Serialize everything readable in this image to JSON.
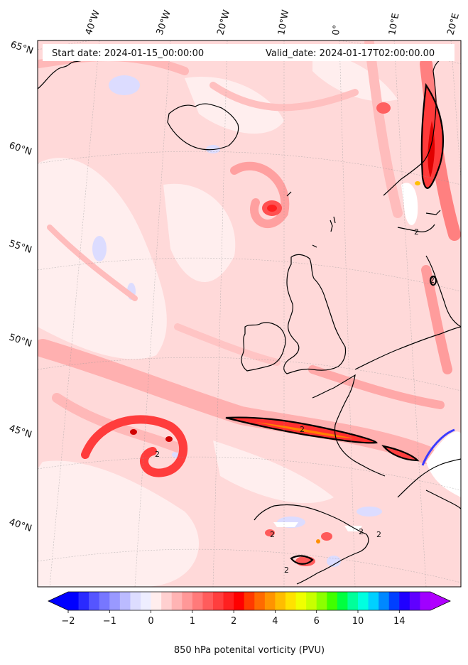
{
  "header": {
    "start_date": "Start date: 2024-01-15_00:00:00",
    "valid_date": "Valid_date: 2024-01-17T02:00:00.00"
  },
  "lon_labels": [
    "40°W",
    "30°W",
    "20°W",
    "10°W",
    "0°",
    "10°E",
    "20°E"
  ],
  "lat_labels": [
    "65°N",
    "60°N",
    "55°N",
    "50°N",
    "45°N",
    "40°N"
  ],
  "colorbar": {
    "label": "850 hPa potenital vorticity (PVU)",
    "ticks": [
      "−2",
      "−1",
      "0",
      "1",
      "2",
      "4",
      "6",
      "10",
      "14"
    ],
    "colors": [
      "#0000ff",
      "#2a2aff",
      "#5555ff",
      "#7777ff",
      "#9999ff",
      "#bbbbff",
      "#ddddff",
      "#eeeeff",
      "#ffeeee",
      "#ffd0d0",
      "#ffb4b4",
      "#ff9898",
      "#ff7a7a",
      "#ff5c5c",
      "#ff3e3e",
      "#ff2020",
      "#ff0000",
      "#ff3a00",
      "#ff6a00",
      "#ff9400",
      "#ffbd00",
      "#ffe200",
      "#f0ff00",
      "#c8ff00",
      "#8cff00",
      "#40ff00",
      "#00ff40",
      "#00ff9a",
      "#00ffe0",
      "#00d0ff",
      "#0088ff",
      "#0040ff",
      "#2000ff",
      "#6000ff",
      "#a000ff"
    ],
    "under_color": "#0000ff",
    "over_color": "#b000ff"
  },
  "contour_labels": [
    "2",
    "2",
    "2",
    "2",
    "2",
    "2",
    "2",
    "2"
  ]
}
